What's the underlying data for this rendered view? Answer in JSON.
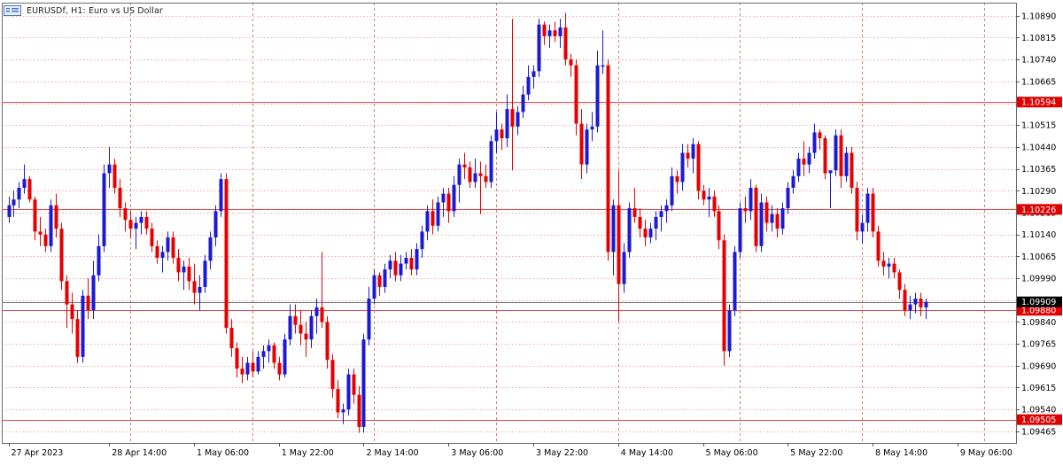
{
  "window": {
    "symbol": "EURUSDf",
    "timeframe": "H1",
    "description": "Euro vs US Dollar",
    "title": "EURUSDf, H1:  Euro vs US Dollar"
  },
  "colors": {
    "bull": "#1a1ad6",
    "bear": "#e60000",
    "wick_bull": "#1a1ad6",
    "wick_bear": "#e60000",
    "grid": "#d23c3c",
    "level_line": "#e84a4a",
    "bid_line": "#7a7a7a",
    "bid_label_bg": "#000000",
    "level_label_bg": "#e10000",
    "axis_text": "#000000"
  },
  "chart_data": {
    "type": "candlestick",
    "ylim": [
      1.09425,
      1.10935
    ],
    "y_ticks": [
      "1.10890",
      "1.10815",
      "1.10740",
      "1.10665",
      "1.10590",
      "1.10515",
      "1.10440",
      "1.10365",
      "1.10290",
      "1.10215",
      "1.10140",
      "1.10065",
      "1.09990",
      "1.09915",
      "1.09840",
      "1.09765",
      "1.09690",
      "1.09615",
      "1.09540",
      "1.09465"
    ],
    "x_labels": [
      {
        "label": "27 Apr 2023",
        "bar": 0
      },
      {
        "label": "28 Apr 14:00",
        "bar": 19
      },
      {
        "label": "1 May 06:00",
        "bar": 35
      },
      {
        "label": "1 May 22:00",
        "bar": 51
      },
      {
        "label": "2 May 14:00",
        "bar": 67
      },
      {
        "label": "3 May 06:00",
        "bar": 83
      },
      {
        "label": "3 May 22:00",
        "bar": 99
      },
      {
        "label": "4 May 14:00",
        "bar": 115
      },
      {
        "label": "5 May 06:00",
        "bar": 131
      },
      {
        "label": "5 May 22:00",
        "bar": 147
      },
      {
        "label": "8 May 14:00",
        "bar": 163
      },
      {
        "label": "9 May 06:00",
        "bar": 179
      }
    ],
    "horizontal_levels": [
      {
        "price": "1.10594",
        "value": 1.10594
      },
      {
        "price": "1.10226",
        "value": 1.10226
      },
      {
        "price": "1.09880",
        "value": 1.0988
      },
      {
        "price": "1.09505",
        "value": 1.09505
      }
    ],
    "bid": {
      "price": "1.09909",
      "value": 1.09909
    },
    "candles": [
      [
        1.102,
        1.1027,
        1.1018,
        1.1024
      ],
      [
        1.1024,
        1.1029,
        1.102,
        1.1026
      ],
      [
        1.1026,
        1.1032,
        1.1023,
        1.103
      ],
      [
        1.103,
        1.1038,
        1.1028,
        1.1033
      ],
      [
        1.1033,
        1.1034,
        1.1025,
        1.1026
      ],
      [
        1.1026,
        1.1027,
        1.1012,
        1.1015
      ],
      [
        1.1015,
        1.102,
        1.101,
        1.1014
      ],
      [
        1.1014,
        1.1016,
        1.1008,
        1.101
      ],
      [
        1.101,
        1.1026,
        1.1008,
        1.1024
      ],
      [
        1.1024,
        1.1028,
        1.1013,
        1.1016
      ],
      [
        1.1016,
        1.1018,
        1.0995,
        1.0998
      ],
      [
        1.0998,
        1.1,
        1.0982,
        1.099
      ],
      [
        1.099,
        1.0994,
        1.098,
        1.0985
      ],
      [
        1.0985,
        1.0988,
        1.097,
        1.0972
      ],
      [
        1.0972,
        1.0995,
        1.097,
        1.0993
      ],
      [
        1.0993,
        1.0999,
        1.0985,
        1.0988
      ],
      [
        1.0988,
        1.1005,
        1.0985,
        1.1
      ],
      [
        1.1,
        1.1014,
        1.0998,
        1.101
      ],
      [
        1.101,
        1.1038,
        1.1008,
        1.1035
      ],
      [
        1.1035,
        1.1044,
        1.103,
        1.1038
      ],
      [
        1.1038,
        1.104,
        1.1028,
        1.103
      ],
      [
        1.103,
        1.1033,
        1.102,
        1.1023
      ],
      [
        1.1023,
        1.1025,
        1.1015,
        1.1019
      ],
      [
        1.1019,
        1.1022,
        1.1013,
        1.1016
      ],
      [
        1.1016,
        1.102,
        1.1009,
        1.1018
      ],
      [
        1.1018,
        1.1022,
        1.1014,
        1.102
      ],
      [
        1.102,
        1.1022,
        1.1014,
        1.1016
      ],
      [
        1.1016,
        1.1018,
        1.1008,
        1.101
      ],
      [
        1.101,
        1.1012,
        1.1004,
        1.1006
      ],
      [
        1.1006,
        1.101,
        1.1001,
        1.1008
      ],
      [
        1.1008,
        1.1015,
        1.1005,
        1.1013
      ],
      [
        1.1013,
        1.1015,
        1.1004,
        1.1006
      ],
      [
        1.1006,
        1.1009,
        1.0998,
        1.1001
      ],
      [
        1.1001,
        1.1005,
        1.0995,
        1.1003
      ],
      [
        1.1003,
        1.1006,
        1.0995,
        1.0998
      ],
      [
        1.0998,
        1.1004,
        1.099,
        1.0994
      ],
      [
        1.0994,
        1.1,
        1.0988,
        1.0996
      ],
      [
        1.0996,
        1.1007,
        1.0994,
        1.1005
      ],
      [
        1.1005,
        1.1015,
        1.1002,
        1.1013
      ],
      [
        1.1013,
        1.1024,
        1.101,
        1.1022
      ],
      [
        1.1022,
        1.1035,
        1.102,
        1.1033
      ],
      [
        1.1033,
        1.1035,
        1.098,
        1.0982
      ],
      [
        1.0982,
        1.0985,
        1.0972,
        1.0975
      ],
      [
        1.0975,
        1.0977,
        1.0965,
        1.0968
      ],
      [
        1.0968,
        1.0972,
        1.0963,
        1.0966
      ],
      [
        1.0966,
        1.0972,
        1.0964,
        1.097
      ],
      [
        1.097,
        1.0974,
        1.0965,
        1.0967
      ],
      [
        1.0967,
        1.0974,
        1.0966,
        1.0972
      ],
      [
        1.0972,
        1.0976,
        1.0968,
        1.0974
      ],
      [
        1.0974,
        1.0978,
        1.097,
        1.0976
      ],
      [
        1.0976,
        1.0977,
        1.0968,
        1.097
      ],
      [
        1.097,
        1.0972,
        1.0964,
        1.0966
      ],
      [
        1.0966,
        1.098,
        1.0965,
        1.0978
      ],
      [
        1.0978,
        1.099,
        1.0976,
        1.0986
      ],
      [
        1.0986,
        1.099,
        1.098,
        1.0983
      ],
      [
        1.0983,
        1.0988,
        1.0976,
        1.098
      ],
      [
        1.098,
        1.0984,
        1.0972,
        1.0978
      ],
      [
        1.0978,
        1.0988,
        1.0975,
        1.0986
      ],
      [
        1.0986,
        1.0992,
        1.098,
        1.0989
      ],
      [
        1.0989,
        1.1008,
        1.0982,
        1.0984
      ],
      [
        1.0984,
        1.0986,
        1.0968,
        1.0971
      ],
      [
        1.0971,
        1.0973,
        1.0958,
        1.0961
      ],
      [
        1.0961,
        1.0964,
        1.0951,
        1.0953
      ],
      [
        1.0953,
        1.0956,
        1.0949,
        1.0954
      ],
      [
        1.0954,
        1.0968,
        1.0952,
        1.0966
      ],
      [
        1.0966,
        1.0968,
        1.0956,
        1.0959
      ],
      [
        1.0959,
        1.0962,
        1.0946,
        1.0948
      ],
      [
        1.0948,
        1.098,
        1.0946,
        1.0978
      ],
      [
        1.0978,
        1.0996,
        1.0976,
        1.0992
      ],
      [
        1.0992,
        1.1002,
        1.099,
        1.1
      ],
      [
        1.1,
        1.1001,
        1.0993,
        1.0996
      ],
      [
        1.0996,
        1.1004,
        1.0994,
        1.1002
      ],
      [
        1.1002,
        1.1007,
        1.0999,
        1.1005
      ],
      [
        1.1005,
        1.1008,
        1.0998,
        1.1
      ],
      [
        1.1,
        1.1007,
        1.0998,
        1.1004
      ],
      [
        1.1004,
        1.1008,
        1.1002,
        1.1006
      ],
      [
        1.1006,
        1.1009,
        1.1,
        1.1002
      ],
      [
        1.1002,
        1.1011,
        1.1,
        1.1009
      ],
      [
        1.1009,
        1.1017,
        1.1006,
        1.1015
      ],
      [
        1.1015,
        1.1024,
        1.1012,
        1.1022
      ],
      [
        1.1022,
        1.1026,
        1.1014,
        1.1017
      ],
      [
        1.1017,
        1.1027,
        1.1015,
        1.1025
      ],
      [
        1.1025,
        1.103,
        1.102,
        1.1028
      ],
      [
        1.1028,
        1.103,
        1.1018,
        1.1022
      ],
      [
        1.1022,
        1.1034,
        1.102,
        1.1031
      ],
      [
        1.1031,
        1.104,
        1.1025,
        1.1038
      ],
      [
        1.1038,
        1.1042,
        1.1033,
        1.1037
      ],
      [
        1.1037,
        1.1039,
        1.103,
        1.1032
      ],
      [
        1.1032,
        1.104,
        1.103,
        1.1035
      ],
      [
        1.1035,
        1.1039,
        1.1021,
        1.1034
      ],
      [
        1.1034,
        1.1038,
        1.103,
        1.1032
      ],
      [
        1.1032,
        1.1048,
        1.103,
        1.1046
      ],
      [
        1.1046,
        1.1056,
        1.1042,
        1.105
      ],
      [
        1.105,
        1.1052,
        1.1043,
        1.1047
      ],
      [
        1.1047,
        1.1062,
        1.1044,
        1.1057
      ],
      [
        1.1057,
        1.1088,
        1.1036,
        1.1051
      ],
      [
        1.1051,
        1.1058,
        1.1048,
        1.1056
      ],
      [
        1.1056,
        1.1065,
        1.1054,
        1.1062
      ],
      [
        1.1062,
        1.1072,
        1.106,
        1.1068
      ],
      [
        1.1068,
        1.1072,
        1.1064,
        1.107
      ],
      [
        1.107,
        1.1088,
        1.1068,
        1.1086
      ],
      [
        1.1086,
        1.1087,
        1.1079,
        1.1082
      ],
      [
        1.1082,
        1.1086,
        1.1078,
        1.1084
      ],
      [
        1.1084,
        1.1087,
        1.108,
        1.1082
      ],
      [
        1.1082,
        1.1088,
        1.1078,
        1.1085
      ],
      [
        1.1085,
        1.109,
        1.1072,
        1.1074
      ],
      [
        1.1074,
        1.1076,
        1.1068,
        1.1072
      ],
      [
        1.1072,
        1.1074,
        1.1048,
        1.1052
      ],
      [
        1.1052,
        1.1057,
        1.1033,
        1.1038
      ],
      [
        1.1038,
        1.1052,
        1.1035,
        1.105
      ],
      [
        1.105,
        1.1056,
        1.1046,
        1.1051
      ],
      [
        1.1051,
        1.1077,
        1.1049,
        1.1072
      ],
      [
        1.1072,
        1.1084,
        1.1069,
        1.1072
      ],
      [
        1.1072,
        1.1074,
        1.1005,
        1.1008
      ],
      [
        1.1008,
        1.1026,
        1.1,
        1.1024
      ],
      [
        1.1024,
        1.1036,
        1.0984,
        1.0997
      ],
      [
        1.0997,
        1.1011,
        1.0994,
        1.1008
      ],
      [
        1.1008,
        1.1025,
        1.1006,
        1.1023
      ],
      [
        1.1023,
        1.103,
        1.1018,
        1.102
      ],
      [
        1.102,
        1.1023,
        1.1013,
        1.1016
      ],
      [
        1.1016,
        1.1019,
        1.101,
        1.1013
      ],
      [
        1.1013,
        1.1018,
        1.1011,
        1.1016
      ],
      [
        1.1016,
        1.1022,
        1.1012,
        1.102
      ],
      [
        1.102,
        1.1024,
        1.1015,
        1.1022
      ],
      [
        1.1022,
        1.1026,
        1.1018,
        1.1024
      ],
      [
        1.1024,
        1.1037,
        1.1022,
        1.1034
      ],
      [
        1.1034,
        1.1036,
        1.1028,
        1.1032
      ],
      [
        1.1032,
        1.1045,
        1.1029,
        1.1042
      ],
      [
        1.1042,
        1.1045,
        1.1037,
        1.104
      ],
      [
        1.104,
        1.1047,
        1.1035,
        1.1045
      ],
      [
        1.1045,
        1.1046,
        1.1026,
        1.1029
      ],
      [
        1.1029,
        1.1031,
        1.1024,
        1.1026
      ],
      [
        1.1026,
        1.103,
        1.102,
        1.1027
      ],
      [
        1.1027,
        1.1029,
        1.102,
        1.1022
      ],
      [
        1.1022,
        1.1024,
        1.1009,
        1.1012
      ],
      [
        1.1012,
        1.1014,
        1.0969,
        1.0974
      ],
      [
        1.0974,
        1.099,
        1.0972,
        1.0988
      ],
      [
        1.0988,
        1.101,
        1.0986,
        1.1008
      ],
      [
        1.1008,
        1.1025,
        1.1006,
        1.1023
      ],
      [
        1.1023,
        1.1027,
        1.1018,
        1.1022
      ],
      [
        1.1022,
        1.1033,
        1.1019,
        1.103
      ],
      [
        1.103,
        1.1031,
        1.1008,
        1.101
      ],
      [
        1.101,
        1.1028,
        1.1008,
        1.1025
      ],
      [
        1.1025,
        1.1027,
        1.1015,
        1.1018
      ],
      [
        1.1018,
        1.1024,
        1.1015,
        1.1021
      ],
      [
        1.1021,
        1.1023,
        1.1013,
        1.1016
      ],
      [
        1.1016,
        1.1025,
        1.1014,
        1.1023
      ],
      [
        1.1023,
        1.1032,
        1.1021,
        1.103
      ],
      [
        1.103,
        1.1036,
        1.1028,
        1.1034
      ],
      [
        1.1034,
        1.1042,
        1.1032,
        1.104
      ],
      [
        1.104,
        1.1046,
        1.1034,
        1.1038
      ],
      [
        1.1038,
        1.1044,
        1.1035,
        1.1042
      ],
      [
        1.1042,
        1.1052,
        1.104,
        1.1049
      ],
      [
        1.1049,
        1.105,
        1.1043,
        1.1047
      ],
      [
        1.1047,
        1.1048,
        1.1033,
        1.1035
      ],
      [
        1.1035,
        1.1036,
        1.1023,
        1.1036
      ],
      [
        1.1036,
        1.105,
        1.1034,
        1.1048
      ],
      [
        1.1048,
        1.105,
        1.103,
        1.1034
      ],
      [
        1.1034,
        1.1044,
        1.1032,
        1.1042
      ],
      [
        1.1042,
        1.1044,
        1.1028,
        1.103
      ],
      [
        1.103,
        1.1032,
        1.1012,
        1.1015
      ],
      [
        1.1015,
        1.1021,
        1.1011,
        1.1018
      ],
      [
        1.1018,
        1.103,
        1.1015,
        1.1028
      ],
      [
        1.1028,
        1.103,
        1.1013,
        1.1015
      ],
      [
        1.1015,
        1.1017,
        1.1003,
        1.1005
      ],
      [
        1.1005,
        1.1008,
        1.1,
        1.1003
      ],
      [
        1.1003,
        1.1006,
        1.0999,
        1.1004
      ],
      [
        1.1004,
        1.1006,
        1.0999,
        1.1001
      ],
      [
        1.1001,
        1.1002,
        1.0992,
        1.0995
      ],
      [
        1.0995,
        1.0997,
        1.0986,
        1.0988
      ],
      [
        1.0988,
        1.0993,
        1.0985,
        1.099
      ],
      [
        1.099,
        1.0994,
        1.0987,
        1.0992
      ],
      [
        1.0992,
        1.0994,
        1.0986,
        1.0989
      ],
      [
        1.0989,
        1.0992,
        1.0985,
        1.09909
      ]
    ]
  }
}
